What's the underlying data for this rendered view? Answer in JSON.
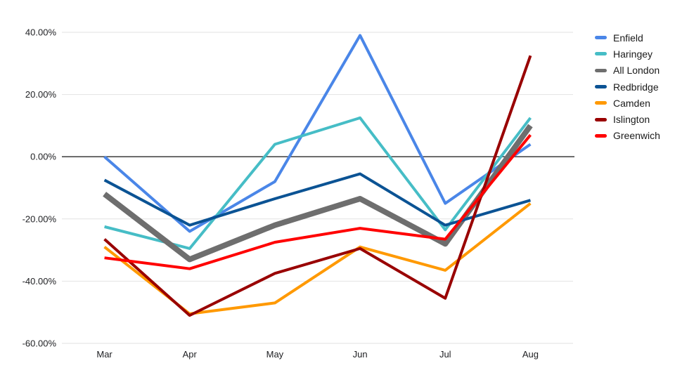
{
  "chart_data": {
    "type": "line",
    "title": "",
    "x_categories": [
      "Mar",
      "Apr",
      "May",
      "Jun",
      "Jul",
      "Aug"
    ],
    "y_axis": {
      "min": -60,
      "max": 40,
      "format": "percent",
      "ticks": [
        {
          "label": "40.00%",
          "value": 40
        },
        {
          "label": "20.00%",
          "value": 20
        },
        {
          "label": "0.00%",
          "value": 0
        },
        {
          "label": "-20.00%",
          "value": -20
        },
        {
          "label": "-40.00%",
          "value": -40
        },
        {
          "label": "-60.00%",
          "value": -60
        }
      ]
    },
    "grid": true,
    "legend_position": "right",
    "series": [
      {
        "name": "Enfield",
        "color": "#4a86e8",
        "line_width": 4,
        "values": [
          0,
          -24,
          -8,
          39,
          -15,
          4
        ]
      },
      {
        "name": "Haringey",
        "color": "#46bdc6",
        "line_width": 4,
        "values": [
          -22.5,
          -29.5,
          4,
          12.5,
          -23.5,
          12.5
        ]
      },
      {
        "name": "All London",
        "color": "#6e6e6e",
        "line_width": 8,
        "values": [
          -12,
          -33,
          -22,
          -13.5,
          -28,
          10
        ]
      },
      {
        "name": "Redbridge",
        "color": "#0b5394",
        "line_width": 4,
        "values": [
          -7.5,
          -22,
          -13.5,
          -5.5,
          -22,
          -14
        ]
      },
      {
        "name": "Camden",
        "color": "#ff9900",
        "line_width": 4,
        "values": [
          -29,
          -50.5,
          -47,
          -29,
          -36.5,
          -15
        ]
      },
      {
        "name": "Islington",
        "color": "#990000",
        "line_width": 4,
        "values": [
          -26.5,
          -51,
          -37.5,
          -29.5,
          -45.5,
          32.5
        ]
      },
      {
        "name": "Greenwich",
        "color": "#ff0000",
        "line_width": 4,
        "values": [
          -32.5,
          -36,
          -27.5,
          -23,
          -26.5,
          7
        ]
      }
    ],
    "colors": {
      "background": "#ffffff",
      "gridline": "#e2e2e2",
      "zero_line": "#4a4a4a",
      "tick_text": "#202124"
    }
  }
}
